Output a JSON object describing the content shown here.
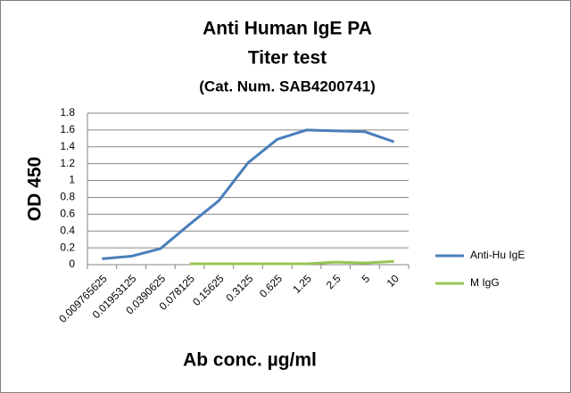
{
  "chart_data": {
    "type": "line",
    "title": [
      "Anti Human IgE PA",
      "Titer test",
      "(Cat. Num. SAB4200741)"
    ],
    "x_label": "Ab conc. µg/ml",
    "y_label": "OD 450",
    "categories": [
      "0.009765625",
      "0.01953125",
      "0.0390625",
      "0.078125",
      "0.15625",
      "0.3125",
      "0.625",
      "1.25",
      "2.5",
      "5",
      "10"
    ],
    "series": [
      {
        "name": "Anti-Hu IgE",
        "color": "#4a7ebb",
        "values": [
          0.07,
          0.1,
          0.19,
          0.48,
          0.76,
          1.21,
          1.49,
          1.6,
          1.59,
          1.58,
          1.46
        ]
      },
      {
        "name": "M IgG",
        "color": "#98c454",
        "values": [
          null,
          null,
          null,
          0.01,
          0.01,
          0.01,
          0.01,
          0.01,
          0.03,
          0.02,
          0.04
        ]
      }
    ],
    "ylim": [
      0,
      1.8
    ],
    "yticks": [
      0,
      0.2,
      0.4,
      0.6,
      0.8,
      1,
      1.2,
      1.4,
      1.6,
      1.8
    ],
    "grid": true,
    "legend": "right"
  }
}
